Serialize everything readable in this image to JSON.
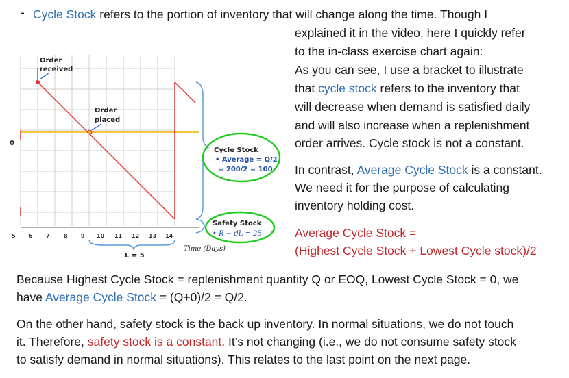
{
  "intro": {
    "bullet": "-",
    "term": "Cycle Stock",
    "line1_rest": " refers to the portion of inventory that will change along the time. Though I",
    "right_lines": [
      "explained it in the video, here I quickly refer",
      "to the in-class exercise chart again:",
      "As you can see, I use a bracket to illustrate"
    ],
    "line5_pre": "that ",
    "line5_term": "cycle stock",
    "line5_post": " refers to the inventory that",
    "right_lines_b": [
      "will decrease when demand is satisfied daily",
      "and will also increase when a replenishment",
      "order arrives. Cycle stock is not a constant."
    ]
  },
  "contrast": {
    "pre": "In contrast, ",
    "term": "Average Cycle Stock",
    "post": " is a constant.",
    "line2": "We need it for the purpose of calculating",
    "line3": "inventory holding cost."
  },
  "formula": {
    "line1": "Average Cycle Stock =",
    "line2": "(Highest Cycle Stock + Lowest Cycle stock)/2"
  },
  "because": {
    "line1": "Because Highest Cycle Stock = replenishment quantity Q or EOQ, Lowest Cycle Stock = 0, we",
    "line2_pre": "have ",
    "line2_term": "Average Cycle Stock",
    "line2_post": " = (Q+0)/2 = Q/2."
  },
  "safety": {
    "line1": "On the other hand, safety stock is the back up inventory. In normal situations, we do not touch",
    "line2_pre": "it. Therefore, ",
    "line2_term": "safety stock is a constant",
    "line2_post": ". It’s not changing (i.e., we do not consume safety stock",
    "line3": "to satisfy demand in normal situations). This relates to the last point on the next page."
  },
  "chart": {
    "order_received_1": "Order",
    "order_received_2": "received",
    "order_placed_1": "Order",
    "order_placed_2": "placed",
    "y_zero": "0",
    "x_ticks": [
      "5",
      "6",
      "7",
      "8",
      "9",
      "10",
      "11",
      "12",
      "13",
      "14"
    ],
    "lead_time": "L = 5",
    "time_label": "Time (Days)",
    "cycle_box_title": "Cycle Stock",
    "cycle_box_line2": "• Average = Q/2",
    "cycle_box_line3": "= 200/2 = 100",
    "safety_box_title": "Safety Stock",
    "safety_box_line2": "• R − dL = 25",
    "colors": {
      "sawtooth_red": "#e03232",
      "reorder_line": "#f5c542",
      "bracket_blue": "#5b9bd5",
      "circle_green": "#22cc22",
      "grid": "#cfcfcf"
    }
  }
}
